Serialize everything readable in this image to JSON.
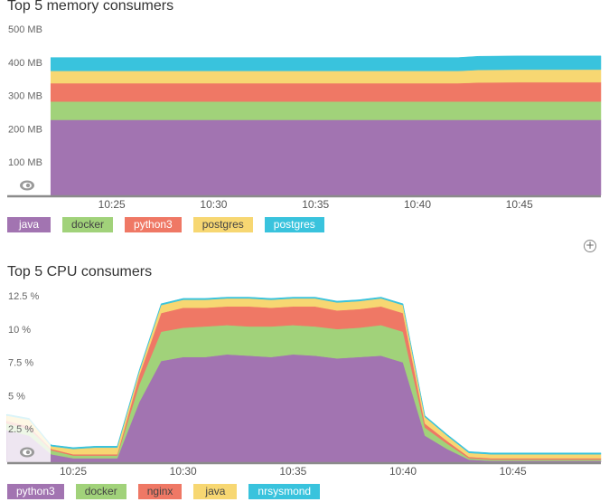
{
  "colors": {
    "java": "#a274b1",
    "docker": "#a1d27a",
    "python3": "#ef7865",
    "postgres": "#f7d772",
    "postgres_2": "#39c3dd",
    "nginx": "#ef7865",
    "nrsysmond": "#39c3dd",
    "axis": "#8b8b8b"
  },
  "icons": {
    "add": "plus-circle-icon",
    "toggle": "eye-toggle-icon"
  },
  "add_button": {
    "glyph": "+"
  },
  "chart_data": [
    {
      "type": "area",
      "stacked": true,
      "title": "Top 5 memory consumers",
      "x": [
        "10:22",
        "10:25",
        "10:30",
        "10:35",
        "10:40",
        "10:42",
        "10:43",
        "10:45",
        "10:49"
      ],
      "xticks": [
        "10:25",
        "10:30",
        "10:35",
        "10:40",
        "10:45"
      ],
      "ylim": [
        0,
        500
      ],
      "yticks": [
        "100 MB",
        "200 MB",
        "300 MB",
        "400 MB",
        "500 MB"
      ],
      "ytick_values": [
        100,
        200,
        300,
        400,
        500
      ],
      "grid": false,
      "legend_position": "bottom-left",
      "series": [
        {
          "name": "java",
          "color_key": "java",
          "values": [
            227,
            227,
            227,
            227,
            227,
            227,
            227,
            227,
            227
          ]
        },
        {
          "name": "docker",
          "color_key": "docker",
          "values": [
            55,
            55,
            55,
            55,
            55,
            55,
            55,
            55,
            55
          ]
        },
        {
          "name": "python3",
          "color_key": "python3",
          "values": [
            55,
            55,
            55,
            55,
            55,
            55,
            57,
            58,
            58
          ]
        },
        {
          "name": "postgres",
          "color_key": "postgres",
          "values": [
            37,
            37,
            37,
            37,
            37,
            37,
            38,
            38,
            38
          ]
        },
        {
          "name": "postgres",
          "color_key": "postgres_2",
          "values": [
            40,
            40,
            40,
            40,
            40,
            40,
            41,
            41,
            41
          ]
        }
      ]
    },
    {
      "type": "area",
      "stacked": true,
      "title": "Top 5 CPU consumers",
      "x": [
        "10:22",
        "10:23",
        "10:24",
        "10:25",
        "10:26",
        "10:27",
        "10:28",
        "10:29",
        "10:30",
        "10:31",
        "10:32",
        "10:33",
        "10:34",
        "10:35",
        "10:36",
        "10:37",
        "10:38",
        "10:39",
        "10:40",
        "10:41",
        "10:42",
        "10:43",
        "10:44",
        "10:45",
        "10:46",
        "10:47",
        "10:48",
        "10:49"
      ],
      "xticks": [
        "10:25",
        "10:30",
        "10:35",
        "10:40",
        "10:45"
      ],
      "ylim": [
        0,
        12.5
      ],
      "yticks": [
        "2.5 %",
        "5 %",
        "7.5 %",
        "10 %",
        "12.5 %"
      ],
      "ytick_values": [
        2.5,
        5,
        7.5,
        10,
        12.5
      ],
      "grid": false,
      "legend_position": "bottom-left",
      "series": [
        {
          "name": "python3",
          "color_key": "java",
          "values": [
            2.4,
            2.0,
            0.6,
            0.3,
            0.3,
            0.3,
            4.5,
            7.6,
            7.9,
            7.9,
            8.1,
            8.0,
            7.9,
            8.1,
            8.0,
            7.8,
            7.9,
            8.0,
            7.5,
            2.0,
            1.0,
            0.2,
            0.1,
            0.1,
            0.1,
            0.1,
            0.1,
            0.1
          ]
        },
        {
          "name": "docker",
          "color_key": "docker",
          "values": [
            0.5,
            0.5,
            0.3,
            0.2,
            0.2,
            0.2,
            1.3,
            2.2,
            2.2,
            2.3,
            2.2,
            2.2,
            2.3,
            2.2,
            2.2,
            2.2,
            2.2,
            2.3,
            2.3,
            0.6,
            0.4,
            0.1,
            0.1,
            0.1,
            0.1,
            0.1,
            0.1,
            0.1
          ]
        },
        {
          "name": "nginx",
          "color_key": "nginx",
          "values": [
            0.2,
            0.2,
            0.1,
            0.1,
            0.1,
            0.1,
            0.7,
            1.4,
            1.5,
            1.4,
            1.4,
            1.5,
            1.4,
            1.4,
            1.5,
            1.4,
            1.4,
            1.4,
            1.4,
            0.3,
            0.2,
            0.1,
            0.1,
            0.1,
            0.1,
            0.1,
            0.1,
            0.1
          ]
        },
        {
          "name": "java",
          "color_key": "postgres",
          "values": [
            0.4,
            0.5,
            0.2,
            0.4,
            0.5,
            0.5,
            0.3,
            0.6,
            0.6,
            0.6,
            0.6,
            0.6,
            0.6,
            0.6,
            0.6,
            0.6,
            0.6,
            0.6,
            0.6,
            0.5,
            0.4,
            0.3,
            0.3,
            0.3,
            0.3,
            0.3,
            0.3,
            0.3
          ]
        },
        {
          "name": "nrsysmond",
          "color_key": "nrsysmond",
          "values": [
            0.1,
            0.1,
            0.1,
            0.1,
            0.1,
            0.1,
            0.1,
            0.1,
            0.1,
            0.1,
            0.1,
            0.1,
            0.1,
            0.1,
            0.1,
            0.1,
            0.1,
            0.1,
            0.1,
            0.1,
            0.1,
            0.1,
            0.1,
            0.1,
            0.1,
            0.1,
            0.1,
            0.1
          ]
        }
      ]
    }
  ]
}
